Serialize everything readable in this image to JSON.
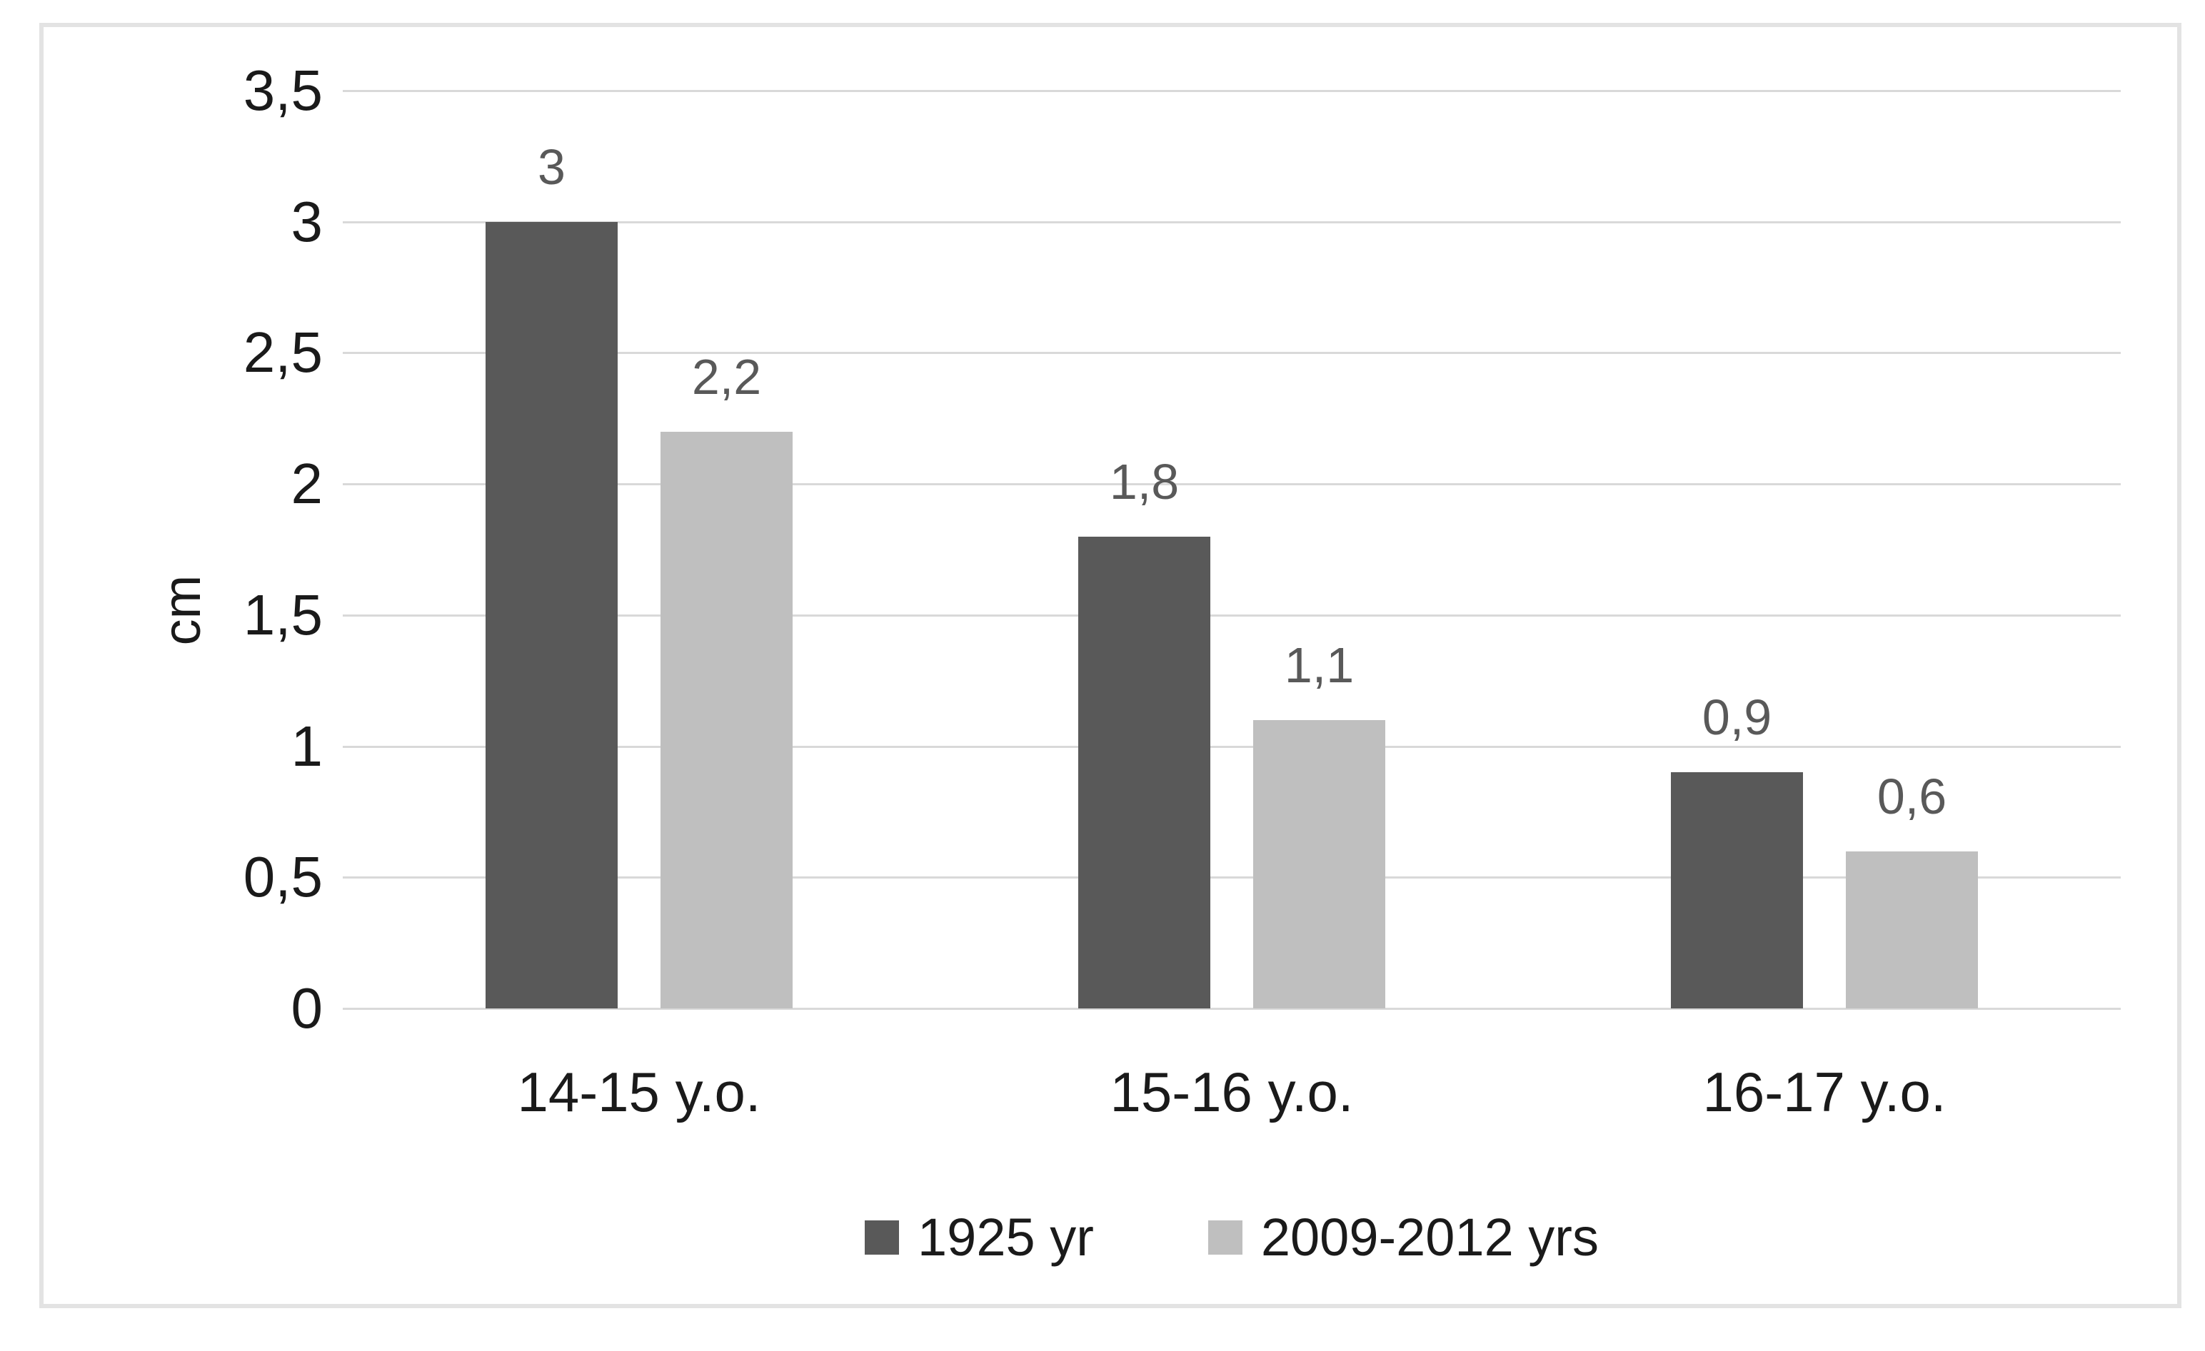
{
  "chart_data": {
    "type": "bar",
    "title": "",
    "xlabel": "",
    "ylabel": "cm",
    "ylim": [
      0,
      3.5
    ],
    "ytick_step": 0.5,
    "ytick_labels": [
      "0",
      "0,5",
      "1",
      "1,5",
      "2",
      "2,5",
      "3",
      "3,5"
    ],
    "categories": [
      "14-15 y.o.",
      "15-16 y.o.",
      "16-17 y.o."
    ],
    "series": [
      {
        "name": "1925 yr",
        "color": "#595959",
        "values": [
          3.0,
          1.8,
          0.9
        ],
        "labels": [
          "3",
          "1,8",
          "0,9"
        ]
      },
      {
        "name": "2009-2012 yrs",
        "color": "#bfbfbf",
        "values": [
          2.2,
          1.1,
          0.6
        ],
        "labels": [
          "2,2",
          "1,1",
          "0,6"
        ]
      }
    ],
    "grid": true,
    "legend_position": "bottom",
    "colors": {
      "gridline": "#d9d9d9",
      "axis_text": "#1a1a1a",
      "data_label": "#595959",
      "frame_border": "#e3e3e3",
      "background": "#ffffff"
    }
  }
}
